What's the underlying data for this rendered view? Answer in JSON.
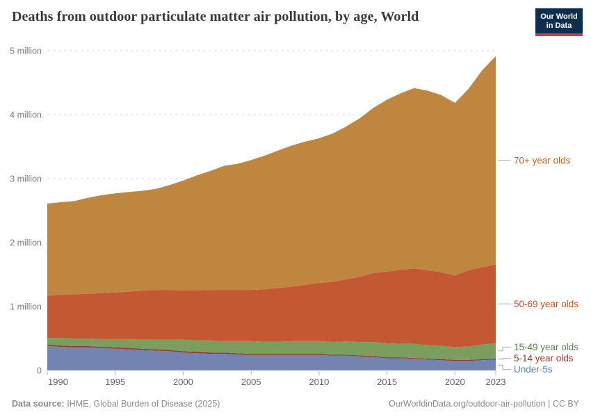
{
  "header": {
    "logo": {
      "line1": "Our World",
      "line2": "in Data",
      "bg_color": "#0d2e4e",
      "accent_color": "#cf3b44"
    }
  },
  "footer": {
    "source_label": "Data source:",
    "source_value": "IHME, Global Burden of Disease (2025)",
    "credit": "OurWorldinData.org/outdoor-air-pollution | CC BY"
  },
  "chart_data": {
    "type": "area",
    "stacked": true,
    "title": "Deaths from outdoor particulate matter air pollution, by age, World",
    "xlabel": "",
    "ylabel": "",
    "ylim": [
      0,
      5
    ],
    "y_unit": "million deaths",
    "grid": true,
    "legend_position": "right",
    "x": [
      1990,
      1991,
      1992,
      1993,
      1994,
      1995,
      1996,
      1997,
      1998,
      1999,
      2000,
      2001,
      2002,
      2003,
      2004,
      2005,
      2006,
      2007,
      2008,
      2009,
      2010,
      2011,
      2012,
      2013,
      2014,
      2015,
      2016,
      2017,
      2018,
      2019,
      2020,
      2021,
      2022,
      2023
    ],
    "x_ticks": [
      1990,
      1995,
      2000,
      2005,
      2010,
      2015,
      2020,
      2023
    ],
    "y_ticks": [
      {
        "value": 0,
        "label": "0"
      },
      {
        "value": 1,
        "label": "1 million"
      },
      {
        "value": 2,
        "label": "2 million"
      },
      {
        "value": 3,
        "label": "3 million"
      },
      {
        "value": 4,
        "label": "4 million"
      },
      {
        "value": 5,
        "label": "5 million"
      }
    ],
    "series": [
      {
        "name": "Under-5s",
        "color": "#7384b2",
        "label_color": "#5880c2",
        "values": [
          0.38,
          0.37,
          0.36,
          0.36,
          0.35,
          0.34,
          0.33,
          0.32,
          0.31,
          0.3,
          0.28,
          0.27,
          0.26,
          0.26,
          0.25,
          0.24,
          0.24,
          0.24,
          0.24,
          0.24,
          0.24,
          0.23,
          0.23,
          0.22,
          0.21,
          0.19,
          0.19,
          0.18,
          0.17,
          0.16,
          0.15,
          0.15,
          0.16,
          0.17
        ]
      },
      {
        "name": "5-14 year olds",
        "color": "#8f3a35",
        "label_color": "#9e3430",
        "values": [
          0.02,
          0.02,
          0.02,
          0.02,
          0.02,
          0.02,
          0.02,
          0.02,
          0.02,
          0.02,
          0.02,
          0.02,
          0.02,
          0.02,
          0.02,
          0.02,
          0.02,
          0.02,
          0.02,
          0.02,
          0.02,
          0.015,
          0.015,
          0.015,
          0.015,
          0.015,
          0.015,
          0.015,
          0.015,
          0.015,
          0.015,
          0.015,
          0.015,
          0.015
        ]
      },
      {
        "name": "15-49 year olds",
        "color": "#7b9d5d",
        "label_color": "#538844",
        "values": [
          0.11,
          0.12,
          0.12,
          0.12,
          0.12,
          0.13,
          0.14,
          0.14,
          0.15,
          0.16,
          0.18,
          0.18,
          0.19,
          0.18,
          0.19,
          0.2,
          0.19,
          0.19,
          0.2,
          0.2,
          0.2,
          0.2,
          0.21,
          0.21,
          0.22,
          0.22,
          0.21,
          0.22,
          0.21,
          0.21,
          0.2,
          0.21,
          0.23,
          0.24
        ]
      },
      {
        "name": "50-69 year olds",
        "color": "#c35833",
        "label_color": "#ca4e2b",
        "values": [
          0.66,
          0.67,
          0.69,
          0.7,
          0.72,
          0.73,
          0.74,
          0.77,
          0.78,
          0.78,
          0.77,
          0.78,
          0.79,
          0.8,
          0.8,
          0.8,
          0.82,
          0.84,
          0.85,
          0.88,
          0.91,
          0.94,
          0.97,
          1.02,
          1.08,
          1.12,
          1.16,
          1.18,
          1.17,
          1.15,
          1.12,
          1.19,
          1.21,
          1.23
        ]
      },
      {
        "name": "70+ year olds",
        "color": "#bf8640",
        "label_color": "#b8691f",
        "values": [
          1.44,
          1.45,
          1.46,
          1.5,
          1.53,
          1.55,
          1.56,
          1.56,
          1.58,
          1.64,
          1.72,
          1.8,
          1.86,
          1.94,
          1.97,
          2.03,
          2.09,
          2.15,
          2.21,
          2.24,
          2.26,
          2.32,
          2.39,
          2.48,
          2.58,
          2.69,
          2.76,
          2.82,
          2.81,
          2.77,
          2.7,
          2.84,
          3.08,
          3.26
        ]
      }
    ]
  }
}
